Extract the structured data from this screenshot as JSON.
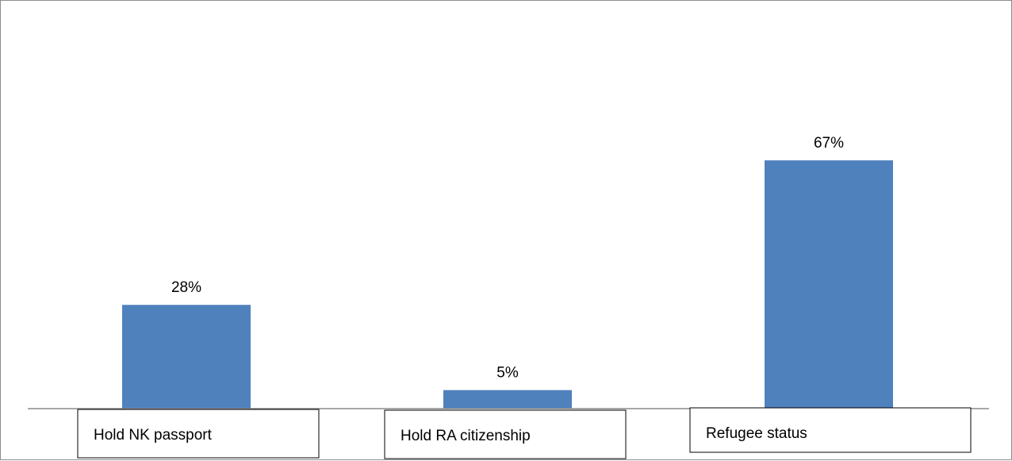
{
  "chart_data": {
    "type": "bar",
    "categories": [
      "Hold NK passport",
      "Hold RA citizenship",
      "Refugee status"
    ],
    "values": [
      28,
      5,
      67
    ],
    "value_labels": [
      "28%",
      "5%",
      "67%"
    ],
    "title": "",
    "xlabel": "",
    "ylabel": "",
    "ylim": [
      0,
      100
    ],
    "grid": false,
    "legend": "none",
    "bar_color": "#4f81bd"
  }
}
